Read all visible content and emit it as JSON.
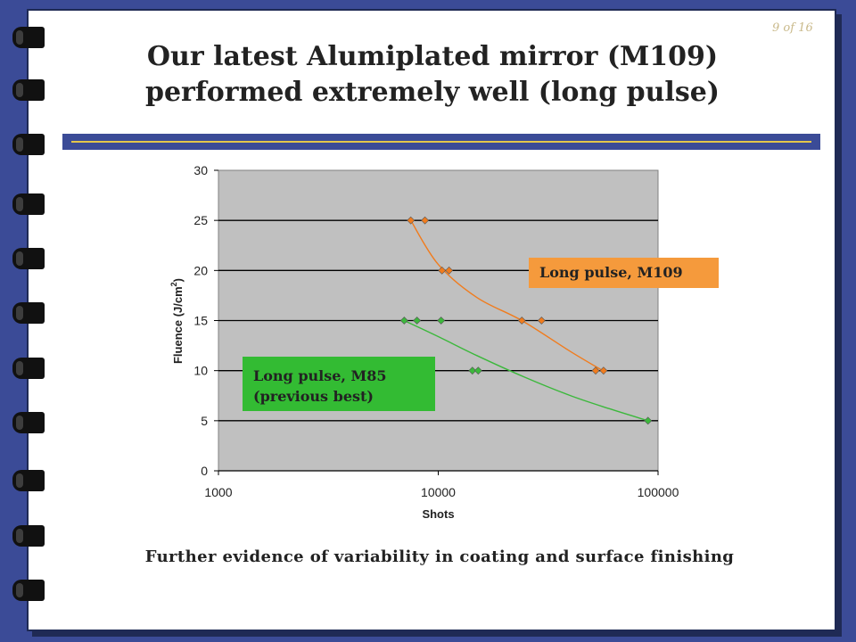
{
  "slide": {
    "number_text": "9 of 16",
    "title_line1": "Our latest Alumiplated mirror (M109)",
    "title_line2": "performed extremely well (long pulse)",
    "caption": "Further evidence of variability in coating and surface finishing",
    "colors": {
      "background": "#3b4b97",
      "rule_accent": "#e4c64a",
      "m109": "#f07c1e",
      "m109_label_bg": "#f59a3c",
      "m85": "#3cb83c",
      "m85_label_bg": "#33bb33",
      "plot_bg": "#c0c0c0"
    },
    "icons": [
      "binder-ring-icon"
    ]
  },
  "annotations": {
    "m109_label": "Long pulse, M109",
    "m85_line1": "Long pulse, M85",
    "m85_line2": "(previous best)"
  },
  "chart_data": {
    "type": "scatter",
    "xlabel": "Shots",
    "ylabel": "Fluence (J/cm",
    "ylabel_superscript": "2",
    "ylabel_close": ")",
    "x_scale": "log",
    "xlim": [
      1000,
      100000
    ],
    "ylim": [
      0,
      30
    ],
    "x_ticks": [
      1000,
      10000,
      100000
    ],
    "x_tick_labels": [
      "1000",
      "10000",
      "100000"
    ],
    "y_ticks": [
      0,
      5,
      10,
      15,
      20,
      25,
      30
    ],
    "y_tick_labels": [
      "0",
      "5",
      "10",
      "15",
      "20",
      "25",
      "30"
    ],
    "grid": "horizontal",
    "series": [
      {
        "key": "m109",
        "color": "#f07c1e",
        "points": [
          [
            7500,
            25
          ],
          [
            8700,
            25
          ],
          [
            10400,
            20
          ],
          [
            11200,
            20
          ],
          [
            24000,
            15
          ],
          [
            29500,
            15
          ],
          [
            52000,
            10
          ],
          [
            56500,
            10
          ]
        ],
        "trend": [
          [
            7500,
            25
          ],
          [
            10000,
            20.6
          ],
          [
            15000,
            17.3
          ],
          [
            24000,
            15
          ],
          [
            40000,
            11.9
          ],
          [
            56000,
            10
          ]
        ]
      },
      {
        "key": "m85",
        "color": "#3cb83c",
        "points": [
          [
            7000,
            15
          ],
          [
            8000,
            15
          ],
          [
            10300,
            15
          ],
          [
            14300,
            10
          ],
          [
            15200,
            10
          ],
          [
            90000,
            5
          ]
        ],
        "trend": [
          [
            7000,
            15
          ],
          [
            10000,
            13.4
          ],
          [
            15000,
            11.5
          ],
          [
            25000,
            9.3
          ],
          [
            40000,
            7.5
          ],
          [
            60000,
            6.2
          ],
          [
            90000,
            5
          ]
        ]
      }
    ]
  }
}
